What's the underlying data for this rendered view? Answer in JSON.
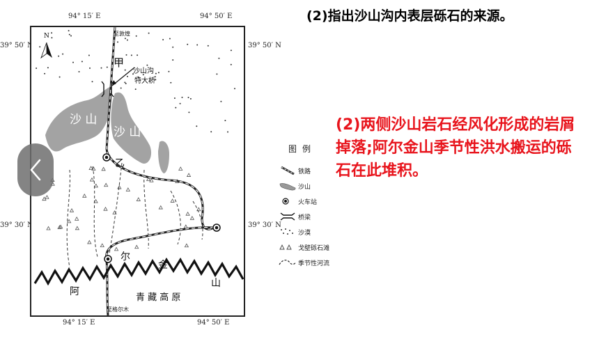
{
  "question": "(2)指出沙山沟内表层砾石的来源。",
  "answer": "(2)两侧沙山岩石经风化形成的岩屑掉落;阿尔金山季节性洪水搬运的砾石在此堆积。",
  "map": {
    "ticks": {
      "top_left": "94° 15′ E",
      "top_right": "94° 50′ E",
      "bottom_left": "94° 15′ E",
      "bottom_right": "94° 50′ E",
      "left_upper": "39° 50′ N",
      "left_lower": "39° 30′ N",
      "right_upper": "39° 50′ N",
      "right_lower": "39° 30′ N"
    },
    "north_label": "N",
    "railway_label": "至敦煌",
    "bridge_label_line1": "沙山沟",
    "bridge_label_line2": "特大桥",
    "jia": "甲",
    "yi": "乙",
    "sand_left": "沙 山",
    "sand_right": "沙 山",
    "mountain_chars": [
      "阿",
      "尔",
      "金",
      "山"
    ],
    "plateau": "青 藏 高 原",
    "bottom_railway_label": "至格尔木"
  },
  "legend": {
    "title": "图例",
    "items": [
      {
        "label": "铁路"
      },
      {
        "label": "沙山"
      },
      {
        "label": "火车站"
      },
      {
        "label": "桥梁"
      },
      {
        "label": "沙漠"
      },
      {
        "label": "戈壁砾石滩"
      },
      {
        "label": "季节性河流"
      }
    ]
  },
  "nav": {
    "icon": "chevron-left-icon"
  }
}
